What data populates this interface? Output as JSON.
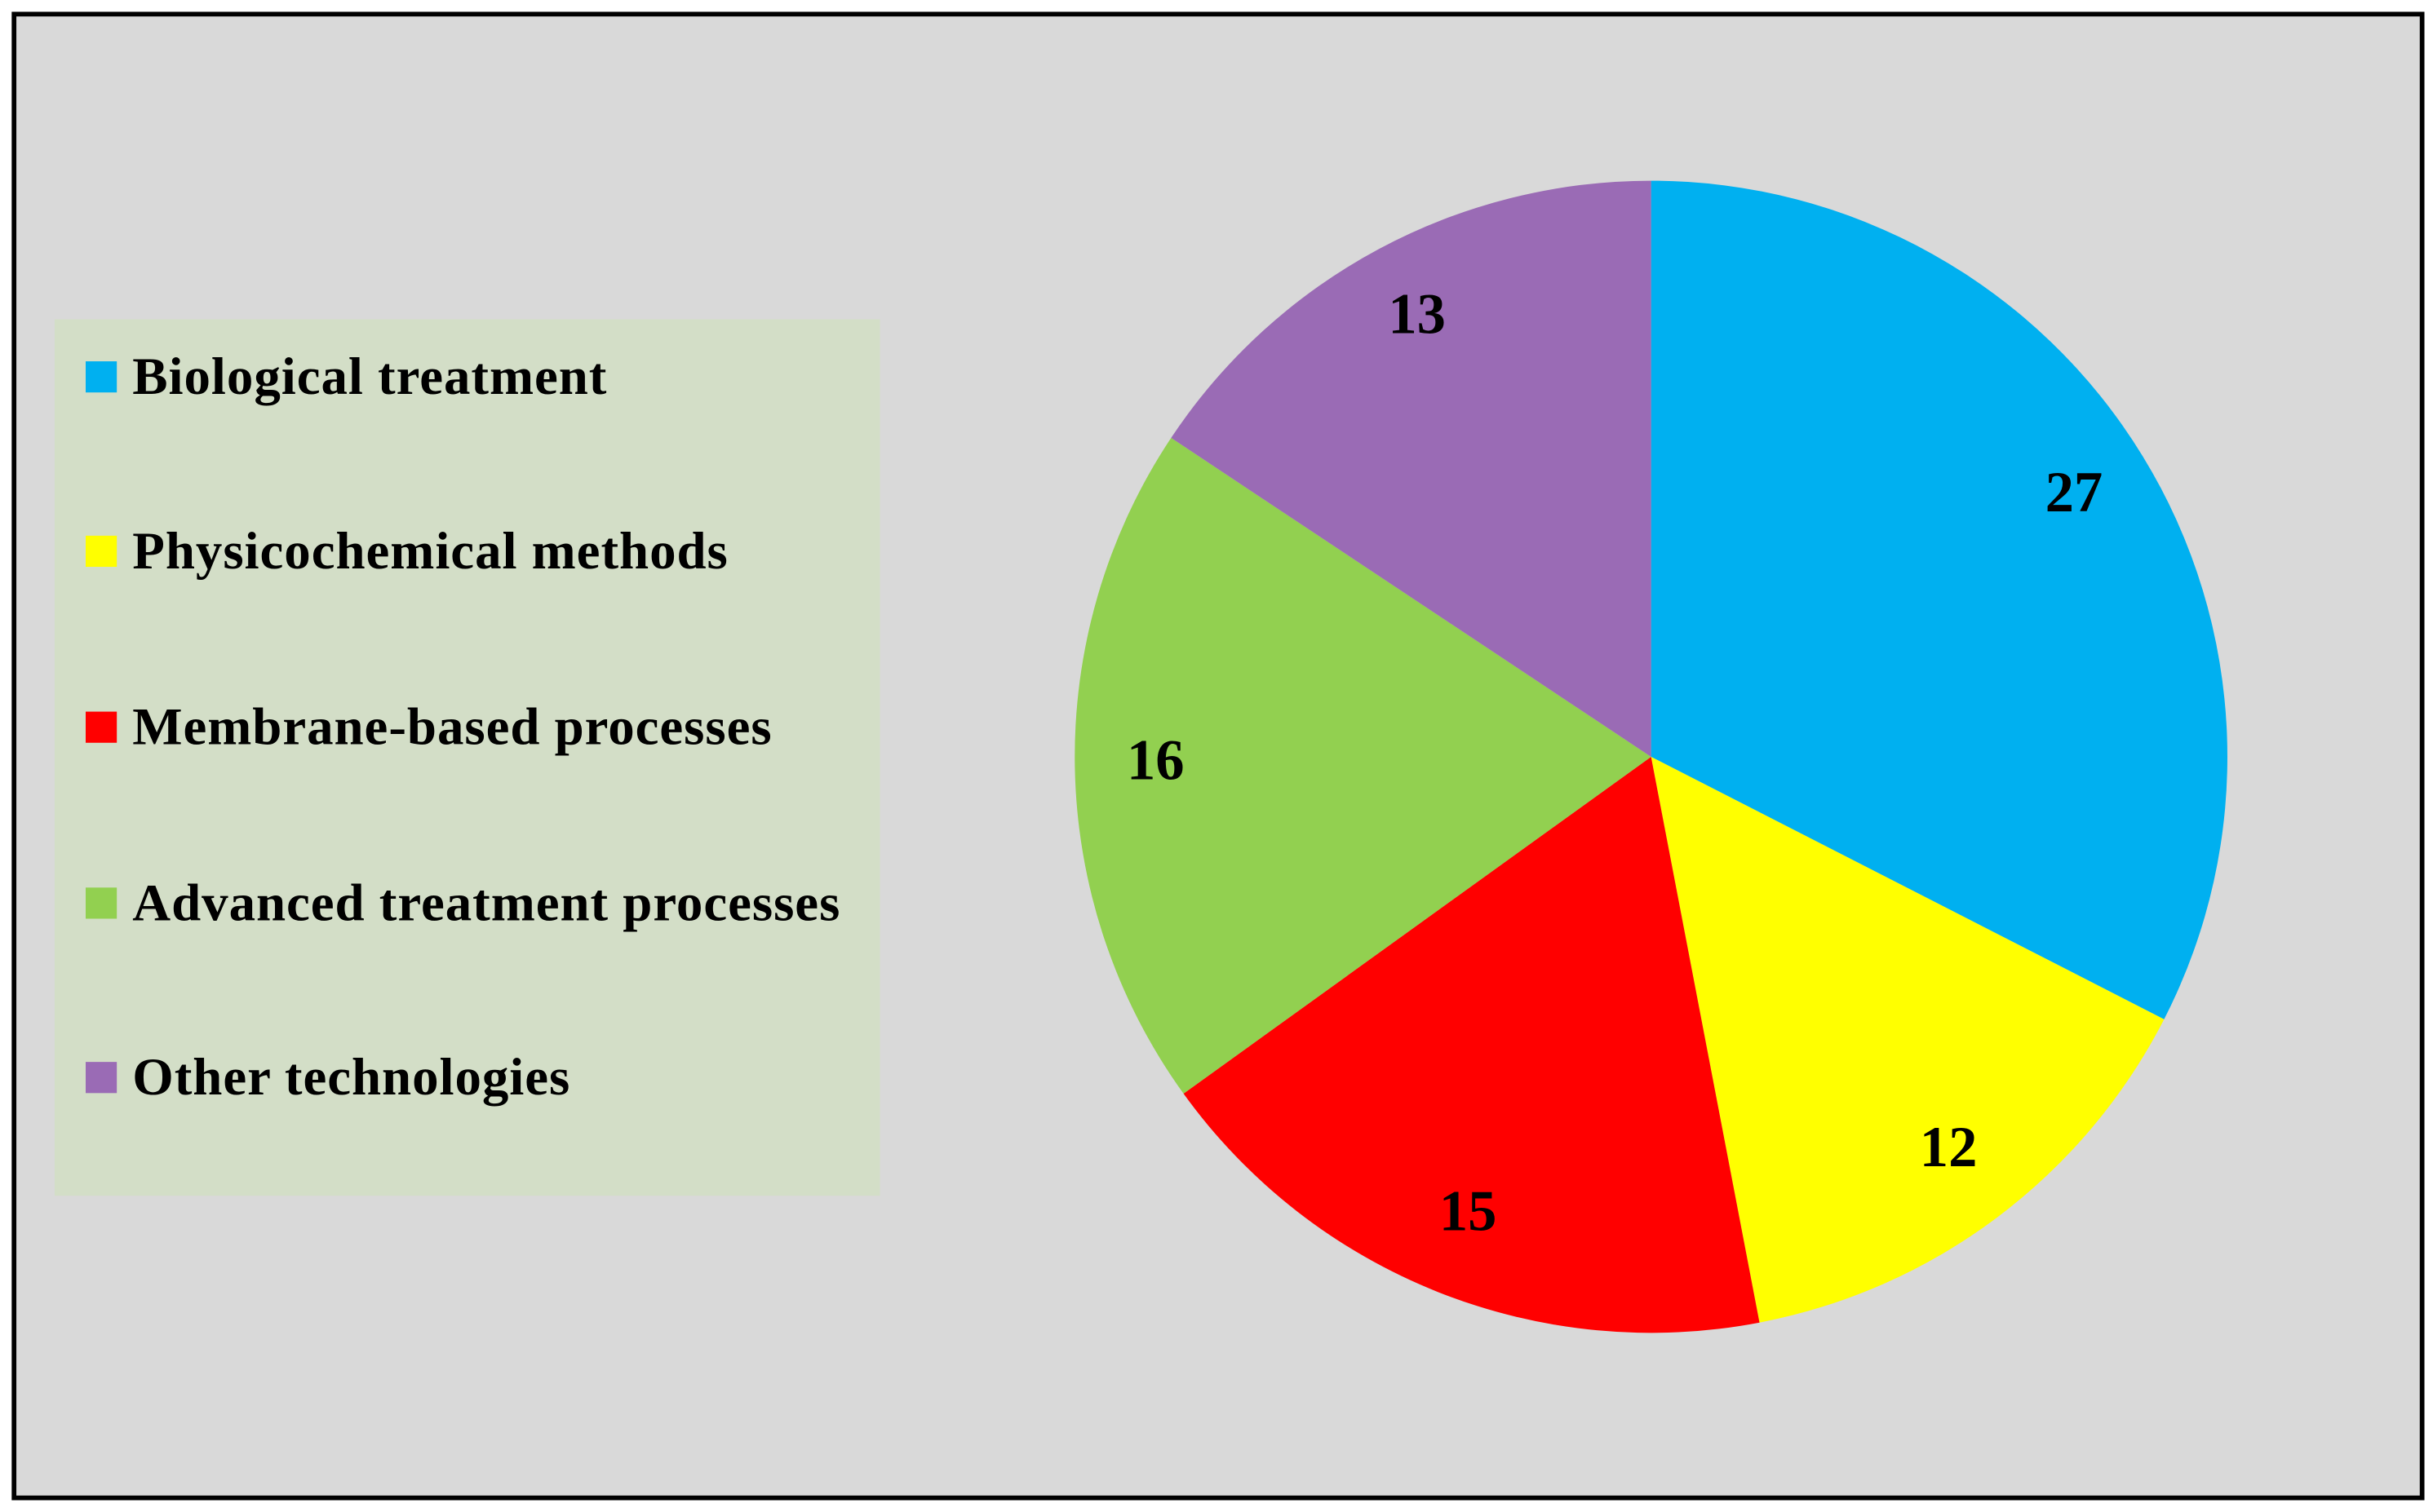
{
  "chart_data": {
    "type": "pie",
    "categories": [
      "Biological treatment",
      "Physicochemical methods",
      "Membrane-based processes",
      "Advanced treatment processes",
      "Other technologies"
    ],
    "values": [
      27,
      12,
      15,
      16,
      13
    ],
    "colors": [
      "#00b0f0",
      "#ffff00",
      "#ff0000",
      "#92d050",
      "#9a6bb5"
    ],
    "legend": "left"
  }
}
